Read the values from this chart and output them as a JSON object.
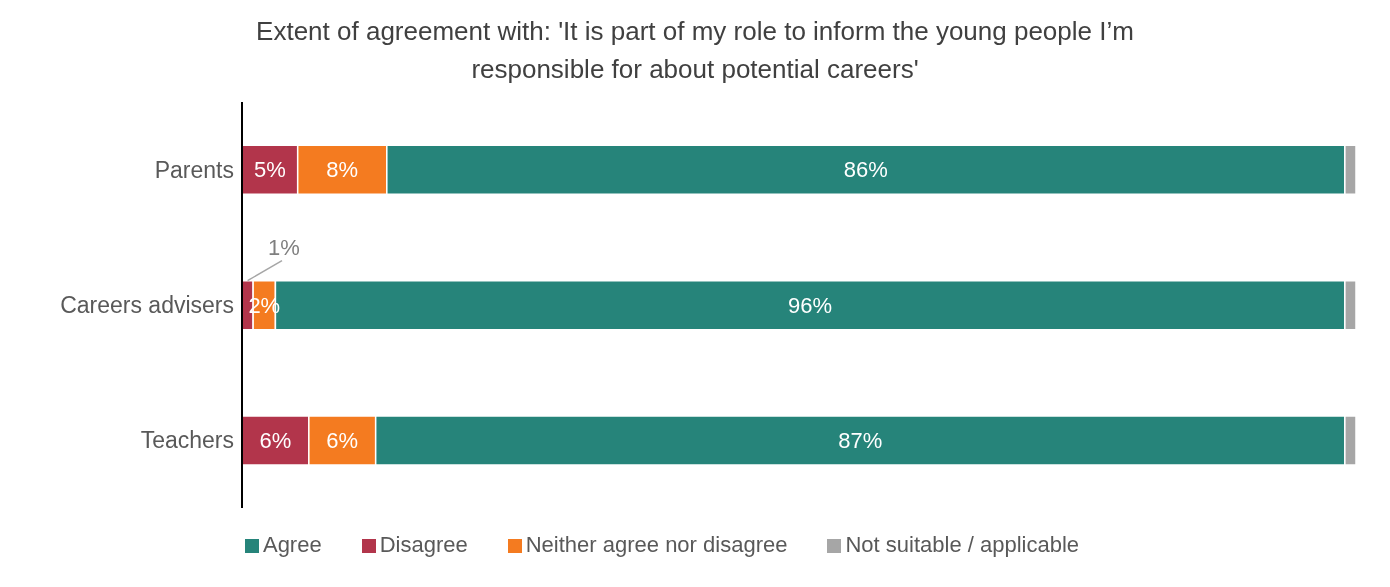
{
  "chart_data": {
    "type": "bar",
    "orientation": "horizontal",
    "stacked": true,
    "title": "Extent of agreement with: 'It is part of my role to inform the young people I’m responsible for about potential careers'",
    "categories": [
      "Parents",
      "Careers advisers",
      "Teachers"
    ],
    "xlim": [
      0,
      100
    ],
    "tick_labels": "y",
    "legend": "bottom",
    "grid": false,
    "series": [
      {
        "name": "Disagree",
        "color": "#b2354b",
        "values": [
          5,
          1,
          6
        ],
        "value_labels": [
          "5%",
          "1%",
          "6%"
        ]
      },
      {
        "name": "Neither agree nor disagree",
        "color": "#f47b20",
        "values": [
          8,
          2,
          6
        ],
        "value_labels": [
          "8%",
          "2%",
          "6%"
        ]
      },
      {
        "name": "Agree",
        "color": "#26847a",
        "values": [
          86,
          96,
          87
        ],
        "value_labels": [
          "86%",
          "96%",
          "87%"
        ]
      },
      {
        "name": "Not suitable / applicable",
        "color": "#a6a6a6",
        "values": [
          1,
          1,
          1
        ],
        "value_labels": [
          null,
          null,
          null
        ]
      }
    ]
  }
}
